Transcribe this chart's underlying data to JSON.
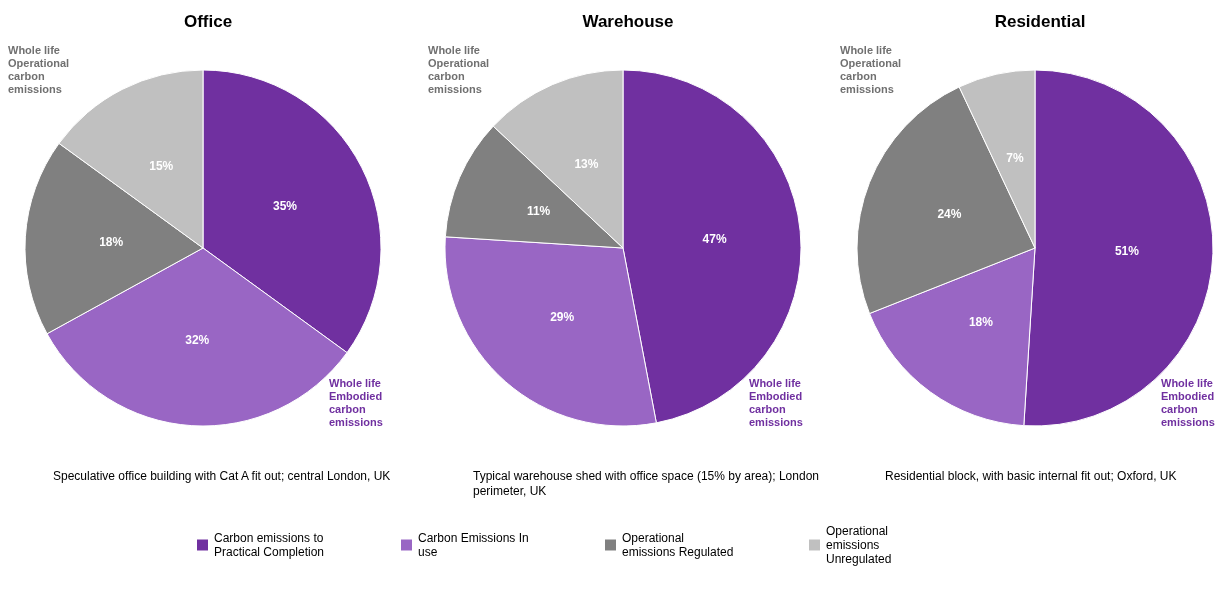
{
  "chart_data": [
    {
      "type": "pie",
      "title": "Office",
      "categories": [
        "Carbon emissions to Practical Completion",
        "Carbon Emissions In use",
        "Operational emissions Regulated",
        "Operational emissions Unregulated"
      ],
      "values": [
        35,
        32,
        18,
        15
      ],
      "value_labels": [
        "35%",
        "32%",
        "18%",
        "15%"
      ],
      "colors": [
        "#7030a0",
        "#9966c4",
        "#808080",
        "#c0c0c0"
      ],
      "legend": "bottom",
      "annotations": [
        "Whole life Operational carbon emissions",
        "Whole life Embodied carbon emissions",
        "Speculative office building with Cat A fit out; central London, UK"
      ]
    },
    {
      "type": "pie",
      "title": "Warehouse",
      "categories": [
        null,
        null,
        null,
        null
      ],
      "values": [
        47,
        29,
        11,
        13
      ],
      "value_labels": [
        "47%",
        "29%",
        "11%",
        "13%"
      ],
      "colors": [
        "#7030a0",
        "#9966c4",
        "#808080",
        "#c0c0c0"
      ],
      "annotations": [
        "Whole life Operational carbon emissions",
        "Whole life Embodied carbon emissions",
        "Typical warehouse shed with office space (15% by area); London perimeter, UK"
      ]
    },
    {
      "type": "pie",
      "title": "Residential",
      "categories": [
        null,
        null,
        null,
        null
      ],
      "values": [
        51,
        18,
        24,
        7
      ],
      "value_labels": [
        "51%",
        "18%",
        "24%",
        "7%"
      ],
      "colors": [
        "#7030a0",
        "#9966c4",
        "#808080",
        "#c0c0c0"
      ],
      "annotations": [
        "Whole life Operational carbon emissions",
        "Whole life Embodied carbon emissions",
        "Residential block, with basic internal fit out; Oxford, UK"
      ]
    }
  ]
}
